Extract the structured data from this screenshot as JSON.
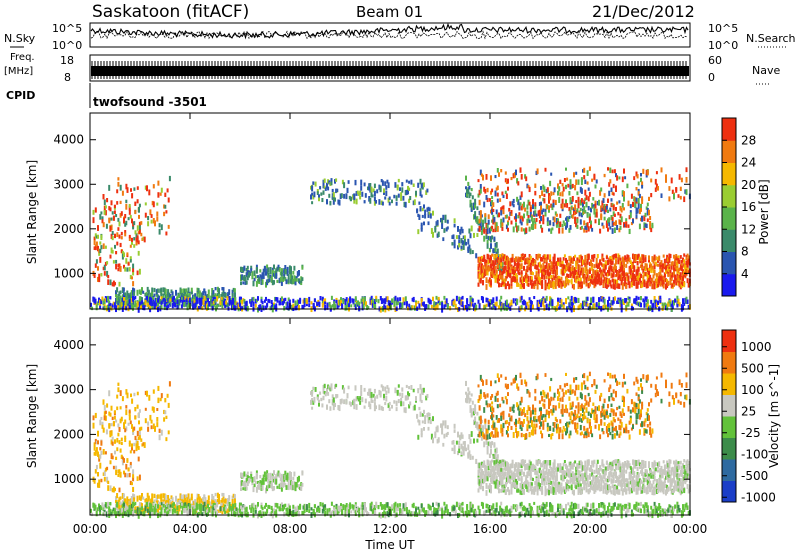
{
  "header": {
    "station": "Saskatoon (fitACF)",
    "beam": "Beam 01",
    "date": "21/Dec/2012"
  },
  "panels": {
    "nsky": {
      "label": "N.Sky",
      "ticks": [
        "10^5",
        "10^0"
      ],
      "right_label": "N.Search",
      "right_ticks": [
        "10^5",
        "10^0"
      ]
    },
    "freq": {
      "label_top": "Freq.",
      "label_bottom": "[MHz]",
      "ticks": [
        "18",
        "8"
      ],
      "right_label": "Nave",
      "right_ticks": [
        "60",
        "0"
      ]
    },
    "cpid": {
      "label": "CPID",
      "value": "twofsound -3501"
    }
  },
  "chart_data": [
    {
      "type": "heatmap",
      "name": "power",
      "ylabel": "Slant Range [km]",
      "ylim": [
        200,
        4600
      ],
      "yticks": [
        1000,
        2000,
        3000,
        4000
      ],
      "colorbar": {
        "label": "Power [dB]",
        "range": [
          0,
          32
        ],
        "ticks": [
          4,
          8,
          12,
          16,
          20,
          24,
          28
        ],
        "colors": [
          "#1a1aee",
          "#2a55b0",
          "#3a8a6a",
          "#5ab34a",
          "#9acd32",
          "#f5b800",
          "#f07a10",
          "#ee3010"
        ]
      }
    },
    {
      "type": "heatmap",
      "name": "velocity",
      "ylabel": "Slant Range [km]",
      "ylim": [
        200,
        4600
      ],
      "yticks": [
        1000,
        2000,
        3000,
        4000
      ],
      "colorbar": {
        "label": "Velocity [m s^-1]",
        "ticks": [
          "1000",
          "500",
          "100",
          "25",
          "-25",
          "-100",
          "-500",
          "-1000"
        ],
        "colors": [
          "#1a3ec8",
          "#2e6aa0",
          "#3c8c4a",
          "#62c23a",
          "#c8c8c0",
          "#f5b800",
          "#f07a10",
          "#ee3010"
        ]
      },
      "xlabel": "Time UT",
      "xticks": [
        "00:00",
        "04:00",
        "08:00",
        "12:00",
        "16:00",
        "20:00",
        "00:00"
      ]
    }
  ]
}
